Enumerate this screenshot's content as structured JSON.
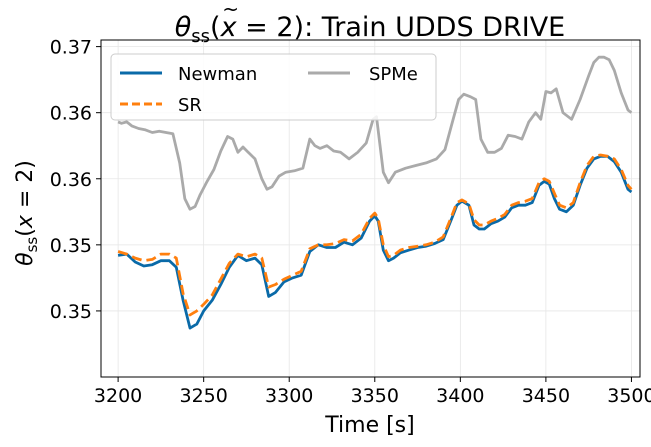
{
  "chart_data": {
    "type": "line",
    "title_parts": {
      "theta": "θ",
      "sub": "ss",
      "arg_open": "(",
      "x": "x",
      "tilde": "~",
      "arg_rest": " = 2): Train UDDS DRIVE"
    },
    "xlabel": "Time [s]",
    "ylabel_parts": {
      "theta": "θ",
      "sub": "ss",
      "arg_open": "(",
      "x": "x",
      "tilde": "~",
      "arg_rest": " = 2)"
    },
    "xlim": [
      3190,
      3505
    ],
    "ylim": [
      0.345,
      0.3705
    ],
    "x_ticks": [
      3200,
      3250,
      3300,
      3350,
      3400,
      3450,
      3500
    ],
    "x_tick_labels": [
      "3200",
      "3250",
      "3300",
      "3350",
      "3400",
      "3450",
      "3500"
    ],
    "y_ticks": [
      0.35,
      0.355,
      0.36,
      0.365,
      0.37
    ],
    "y_tick_labels": [
      "0.35",
      "0.35",
      "0.36",
      "0.36",
      "0.37"
    ],
    "grid": true,
    "legend": {
      "placement": "top-left",
      "columns": 2
    },
    "series": [
      {
        "name": "Newman",
        "color": "#0a6aa8",
        "dash": "solid",
        "x": [
          3200,
          3205,
          3210,
          3215,
          3220,
          3225,
          3230,
          3234,
          3238,
          3242,
          3246,
          3250,
          3255,
          3260,
          3265,
          3270,
          3275,
          3280,
          3284,
          3288,
          3292,
          3297,
          3302,
          3307,
          3312,
          3317,
          3322,
          3327,
          3332,
          3337,
          3342,
          3347,
          3350,
          3352,
          3355,
          3358,
          3361,
          3365,
          3370,
          3375,
          3380,
          3385,
          3390,
          3395,
          3398,
          3401,
          3405,
          3408,
          3411,
          3414,
          3418,
          3422,
          3426,
          3430,
          3434,
          3438,
          3442,
          3446,
          3449,
          3452,
          3455,
          3458,
          3462,
          3466,
          3470,
          3474,
          3478,
          3482,
          3486,
          3490,
          3494,
          3498,
          3500
        ],
        "y": [
          0.3542,
          0.3543,
          0.3537,
          0.3534,
          0.3535,
          0.3538,
          0.3538,
          0.3533,
          0.3508,
          0.3487,
          0.349,
          0.35,
          0.3508,
          0.352,
          0.3533,
          0.3542,
          0.3538,
          0.354,
          0.3535,
          0.3511,
          0.3514,
          0.3522,
          0.3525,
          0.3527,
          0.3545,
          0.355,
          0.3548,
          0.3548,
          0.3552,
          0.355,
          0.3555,
          0.3568,
          0.3572,
          0.3568,
          0.3546,
          0.3538,
          0.354,
          0.3544,
          0.3546,
          0.3548,
          0.3549,
          0.3551,
          0.3554,
          0.357,
          0.358,
          0.3583,
          0.358,
          0.3565,
          0.3562,
          0.3562,
          0.3566,
          0.3568,
          0.3571,
          0.3578,
          0.358,
          0.358,
          0.3582,
          0.3595,
          0.3598,
          0.3596,
          0.3585,
          0.3577,
          0.3575,
          0.358,
          0.3595,
          0.3608,
          0.3615,
          0.3617,
          0.3617,
          0.3613,
          0.3605,
          0.3592,
          0.359
        ]
      },
      {
        "name": "SR",
        "color": "#ff7f0e",
        "dash": "dashed",
        "x": [
          3200,
          3205,
          3210,
          3215,
          3220,
          3225,
          3230,
          3234,
          3238,
          3242,
          3246,
          3250,
          3255,
          3260,
          3265,
          3270,
          3275,
          3280,
          3284,
          3288,
          3292,
          3297,
          3302,
          3307,
          3312,
          3317,
          3322,
          3327,
          3332,
          3337,
          3342,
          3347,
          3350,
          3352,
          3355,
          3358,
          3361,
          3365,
          3370,
          3375,
          3380,
          3385,
          3390,
          3395,
          3398,
          3401,
          3405,
          3408,
          3411,
          3414,
          3418,
          3422,
          3426,
          3430,
          3434,
          3438,
          3442,
          3446,
          3449,
          3452,
          3455,
          3458,
          3462,
          3466,
          3470,
          3474,
          3478,
          3482,
          3486,
          3490,
          3494,
          3498,
          3500
        ],
        "y": [
          0.3545,
          0.3543,
          0.354,
          0.3538,
          0.3539,
          0.3543,
          0.3543,
          0.354,
          0.3513,
          0.3497,
          0.35,
          0.3505,
          0.3512,
          0.3524,
          0.3536,
          0.3543,
          0.3541,
          0.3543,
          0.354,
          0.3518,
          0.352,
          0.3524,
          0.3527,
          0.353,
          0.3547,
          0.355,
          0.355,
          0.3551,
          0.3554,
          0.3553,
          0.3558,
          0.357,
          0.3574,
          0.357,
          0.355,
          0.3541,
          0.3542,
          0.3546,
          0.3548,
          0.3549,
          0.355,
          0.3552,
          0.3556,
          0.3572,
          0.3582,
          0.3584,
          0.3581,
          0.3569,
          0.3565,
          0.3565,
          0.3568,
          0.357,
          0.3573,
          0.358,
          0.3582,
          0.3583,
          0.3585,
          0.3597,
          0.36,
          0.3598,
          0.3589,
          0.358,
          0.3578,
          0.3582,
          0.3597,
          0.361,
          0.3617,
          0.3618,
          0.3617,
          0.3615,
          0.3607,
          0.3595,
          0.3592
        ]
      },
      {
        "name": "SPMe",
        "color": "#aaaaaa",
        "dash": "solid",
        "x": [
          3200,
          3202,
          3205,
          3208,
          3212,
          3216,
          3220,
          3224,
          3228,
          3232,
          3236,
          3239,
          3242,
          3245,
          3248,
          3252,
          3256,
          3260,
          3264,
          3267,
          3270,
          3273,
          3276,
          3280,
          3284,
          3287,
          3290,
          3294,
          3298,
          3303,
          3308,
          3312,
          3315,
          3318,
          3322,
          3326,
          3330,
          3335,
          3340,
          3345,
          3349,
          3351,
          3353,
          3355,
          3358,
          3362,
          3368,
          3374,
          3380,
          3386,
          3391,
          3396,
          3399,
          3402,
          3406,
          3409,
          3412,
          3416,
          3420,
          3424,
          3428,
          3432,
          3436,
          3440,
          3444,
          3447,
          3450,
          3453,
          3456,
          3460,
          3465,
          3470,
          3475,
          3478,
          3481,
          3484,
          3487,
          3490,
          3494,
          3498,
          3500
        ],
        "y": [
          0.3643,
          0.3642,
          0.3643,
          0.364,
          0.3638,
          0.3637,
          0.3635,
          0.3636,
          0.3635,
          0.3634,
          0.3612,
          0.3585,
          0.3577,
          0.3579,
          0.3588,
          0.3598,
          0.3607,
          0.3621,
          0.3632,
          0.363,
          0.362,
          0.3624,
          0.362,
          0.3615,
          0.36,
          0.3592,
          0.3594,
          0.3602,
          0.3605,
          0.3606,
          0.3608,
          0.363,
          0.3625,
          0.3623,
          0.3625,
          0.3621,
          0.362,
          0.3615,
          0.362,
          0.3627,
          0.3645,
          0.3647,
          0.3626,
          0.3605,
          0.3597,
          0.3605,
          0.3608,
          0.361,
          0.3612,
          0.3615,
          0.3622,
          0.3646,
          0.366,
          0.3664,
          0.3662,
          0.366,
          0.363,
          0.362,
          0.362,
          0.3623,
          0.3633,
          0.3632,
          0.363,
          0.3643,
          0.365,
          0.3645,
          0.3666,
          0.3665,
          0.3668,
          0.365,
          0.3645,
          0.366,
          0.3678,
          0.3688,
          0.3692,
          0.3692,
          0.369,
          0.3682,
          0.3665,
          0.3652,
          0.365
        ]
      }
    ]
  }
}
